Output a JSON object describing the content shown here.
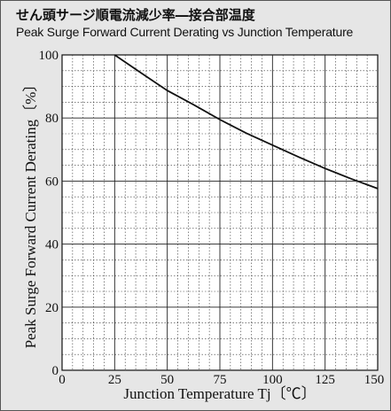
{
  "chart_data": {
    "type": "line",
    "title": "せん頭サージ順電流減少率―接合部温度",
    "subtitle": "Peak Surge Forward Current Derating vs Junction Temperature",
    "xlabel": "Junction Temperature Tj〔℃〕",
    "ylabel": "Peak Surge Forward Current Derating〔%〕",
    "xlim": [
      0,
      150
    ],
    "ylim": [
      0,
      100
    ],
    "xticks": [
      0,
      25,
      50,
      75,
      100,
      125,
      150
    ],
    "yticks": [
      0,
      20,
      40,
      60,
      80,
      100
    ],
    "grid": true,
    "series": [
      {
        "x": [
          25,
          37.5,
          50,
          62.5,
          75,
          87.5,
          100,
          112.5,
          125,
          137.5,
          150
        ],
        "values": [
          100,
          94.3,
          88.7,
          84.2,
          79.5,
          75.2,
          71.4,
          67.6,
          64.0,
          60.7,
          57.6
        ]
      }
    ]
  },
  "colors": {
    "background": "#e6e6e6",
    "plot": "#ffffff",
    "line": "#111111"
  }
}
